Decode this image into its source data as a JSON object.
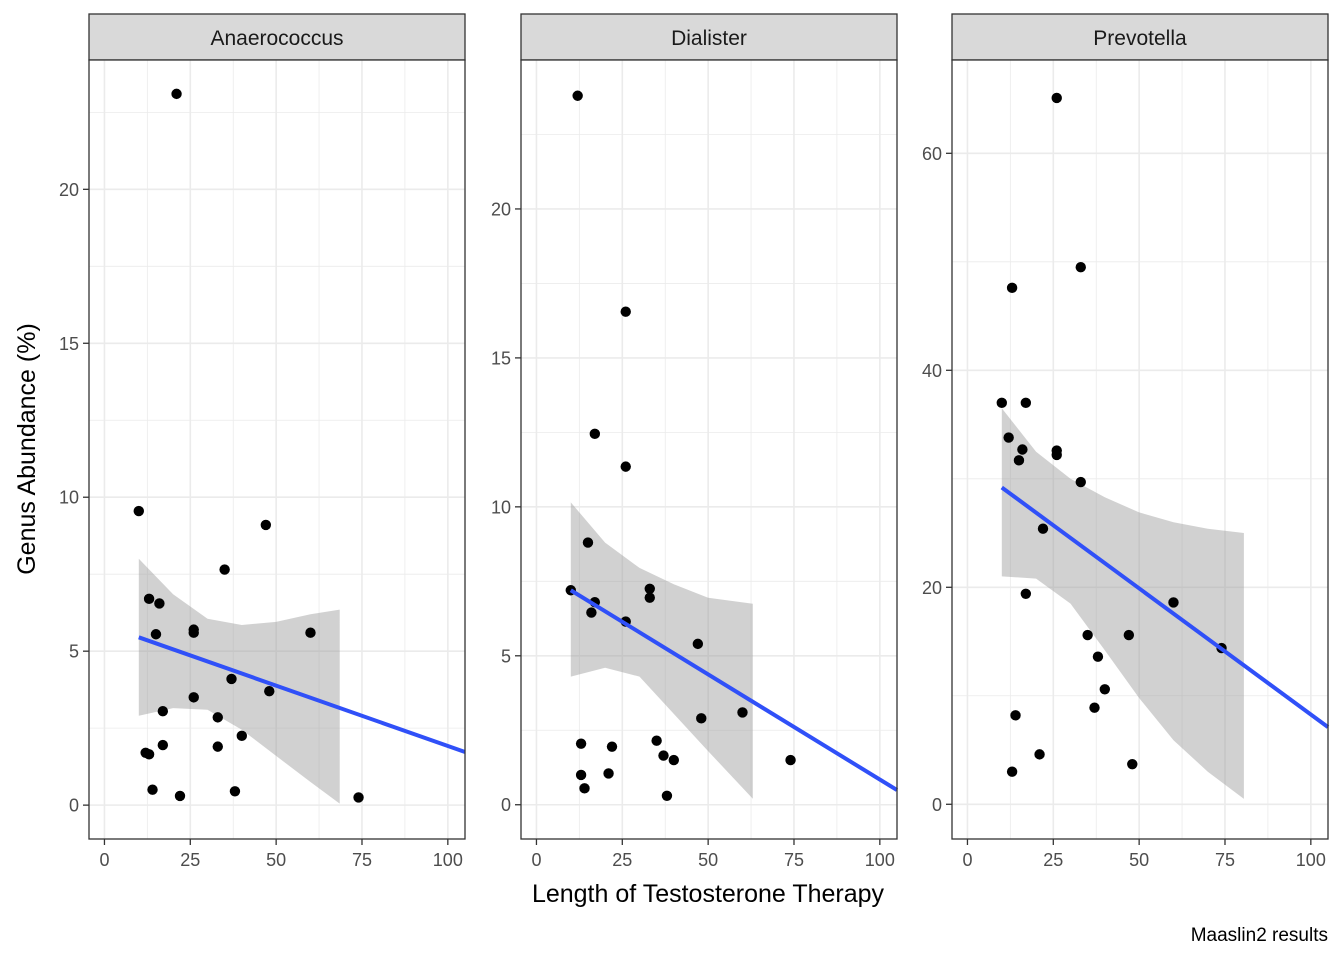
{
  "chart_data": {
    "type": "scatter",
    "xlabel": "Length of Testosterone Therapy",
    "ylabel": "Genus Abundance (%)",
    "caption": "Maaslin2 results",
    "xlim": [
      -4.5,
      105
    ],
    "x_ticks": [
      0,
      25,
      50,
      75,
      100
    ],
    "grid": true,
    "colors": {
      "point": "#000000",
      "fit_line": "#3050f8",
      "ribbon": "#999999",
      "strip_fill": "#d9d9d9",
      "grid_major": "#ebebeb",
      "panel_border": "#333333"
    },
    "panels": [
      {
        "title": "Anaerococcus",
        "ylim": [
          -1.1,
          24.2
        ],
        "y_ticks": [
          0,
          5,
          10,
          15,
          20
        ],
        "points": [
          {
            "x": 10,
            "y": 9.55
          },
          {
            "x": 12,
            "y": 1.7
          },
          {
            "x": 13,
            "y": 6.7
          },
          {
            "x": 13,
            "y": 1.65
          },
          {
            "x": 14,
            "y": 0.5
          },
          {
            "x": 15,
            "y": 5.55
          },
          {
            "x": 16,
            "y": 6.55
          },
          {
            "x": 17,
            "y": 3.05
          },
          {
            "x": 17,
            "y": 1.95
          },
          {
            "x": 21,
            "y": 23.1
          },
          {
            "x": 22,
            "y": 0.3
          },
          {
            "x": 26,
            "y": 5.7
          },
          {
            "x": 26,
            "y": 5.6
          },
          {
            "x": 26,
            "y": 3.5
          },
          {
            "x": 33,
            "y": 2.85
          },
          {
            "x": 33,
            "y": 1.9
          },
          {
            "x": 35,
            "y": 7.65
          },
          {
            "x": 37,
            "y": 4.1
          },
          {
            "x": 38,
            "y": 0.45
          },
          {
            "x": 40,
            "y": 2.25
          },
          {
            "x": 47,
            "y": 9.1
          },
          {
            "x": 48,
            "y": 3.7
          },
          {
            "x": 60,
            "y": 5.6
          },
          {
            "x": 74,
            "y": 0.25
          }
        ],
        "fit": {
          "x_start": 10,
          "y_start": 5.45,
          "slope": -0.0392
        },
        "ribbon": [
          {
            "x": 10,
            "lo": 2.9,
            "hi": 8.0
          },
          {
            "x": 20,
            "lo": 3.15,
            "hi": 6.85
          },
          {
            "x": 30,
            "lo": 3.1,
            "hi": 6.05
          },
          {
            "x": 40,
            "lo": 2.45,
            "hi": 5.85
          },
          {
            "x": 50,
            "lo": 1.6,
            "hi": 5.95
          },
          {
            "x": 60,
            "lo": 0.75,
            "hi": 6.2
          },
          {
            "x": 68.5,
            "lo": 0.05,
            "hi": 6.35
          }
        ]
      },
      {
        "title": "Dialister",
        "ylim": [
          -1.15,
          25.0
        ],
        "y_ticks": [
          0,
          5,
          10,
          15,
          20
        ],
        "points": [
          {
            "x": 10,
            "y": 7.2
          },
          {
            "x": 12,
            "y": 23.8
          },
          {
            "x": 13,
            "y": 2.05
          },
          {
            "x": 13,
            "y": 1.0
          },
          {
            "x": 14,
            "y": 0.55
          },
          {
            "x": 15,
            "y": 8.8
          },
          {
            "x": 16,
            "y": 6.45
          },
          {
            "x": 17,
            "y": 12.45
          },
          {
            "x": 17,
            "y": 6.8
          },
          {
            "x": 21,
            "y": 1.05
          },
          {
            "x": 22,
            "y": 1.95
          },
          {
            "x": 26,
            "y": 16.55
          },
          {
            "x": 26,
            "y": 11.35
          },
          {
            "x": 26,
            "y": 6.15
          },
          {
            "x": 33,
            "y": 7.25
          },
          {
            "x": 33,
            "y": 6.95
          },
          {
            "x": 35,
            "y": 2.15
          },
          {
            "x": 37,
            "y": 1.65
          },
          {
            "x": 38,
            "y": 0.3
          },
          {
            "x": 40,
            "y": 1.5
          },
          {
            "x": 47,
            "y": 5.4
          },
          {
            "x": 48,
            "y": 2.9
          },
          {
            "x": 60,
            "y": 3.1
          },
          {
            "x": 74,
            "y": 1.5
          }
        ],
        "fit": {
          "x_start": 10,
          "y_start": 7.2,
          "slope": -0.0706
        },
        "ribbon": [
          {
            "x": 10,
            "lo": 4.3,
            "hi": 10.15
          },
          {
            "x": 20,
            "lo": 4.6,
            "hi": 8.8
          },
          {
            "x": 30,
            "lo": 4.3,
            "hi": 7.95
          },
          {
            "x": 40,
            "lo": 3.05,
            "hi": 7.4
          },
          {
            "x": 50,
            "lo": 1.8,
            "hi": 6.95
          },
          {
            "x": 63,
            "lo": 0.2,
            "hi": 6.75
          }
        ]
      },
      {
        "title": "Prevotella",
        "ylim": [
          -3.2,
          68.6
        ],
        "y_ticks": [
          0,
          20,
          40,
          60
        ],
        "points": [
          {
            "x": 10,
            "y": 37.0
          },
          {
            "x": 12,
            "y": 33.8
          },
          {
            "x": 13,
            "y": 47.6
          },
          {
            "x": 13,
            "y": 3.0
          },
          {
            "x": 14,
            "y": 8.2
          },
          {
            "x": 15,
            "y": 31.7
          },
          {
            "x": 16,
            "y": 32.7
          },
          {
            "x": 17,
            "y": 37.0
          },
          {
            "x": 17,
            "y": 19.4
          },
          {
            "x": 21,
            "y": 4.6
          },
          {
            "x": 22,
            "y": 25.4
          },
          {
            "x": 26,
            "y": 65.1
          },
          {
            "x": 26,
            "y": 32.6
          },
          {
            "x": 26,
            "y": 32.2
          },
          {
            "x": 33,
            "y": 49.5
          },
          {
            "x": 33,
            "y": 29.7
          },
          {
            "x": 35,
            "y": 15.6
          },
          {
            "x": 37,
            "y": 8.9
          },
          {
            "x": 38,
            "y": 13.6
          },
          {
            "x": 40,
            "y": 10.6
          },
          {
            "x": 47,
            "y": 15.6
          },
          {
            "x": 48,
            "y": 3.7
          },
          {
            "x": 60,
            "y": 18.6
          },
          {
            "x": 74,
            "y": 14.4
          }
        ],
        "fit": {
          "x_start": 10,
          "y_start": 29.2,
          "slope": -0.2325
        },
        "ribbon": [
          {
            "x": 10,
            "lo": 21.0,
            "hi": 36.5
          },
          {
            "x": 20,
            "lo": 20.8,
            "hi": 32.5
          },
          {
            "x": 30,
            "lo": 18.5,
            "hi": 30.0
          },
          {
            "x": 40,
            "lo": 14.2,
            "hi": 28.3
          },
          {
            "x": 50,
            "lo": 9.8,
            "hi": 26.9
          },
          {
            "x": 60,
            "lo": 5.9,
            "hi": 26.0
          },
          {
            "x": 70,
            "lo": 3.0,
            "hi": 25.4
          },
          {
            "x": 80.5,
            "lo": 0.5,
            "hi": 25.0
          }
        ]
      }
    ]
  }
}
